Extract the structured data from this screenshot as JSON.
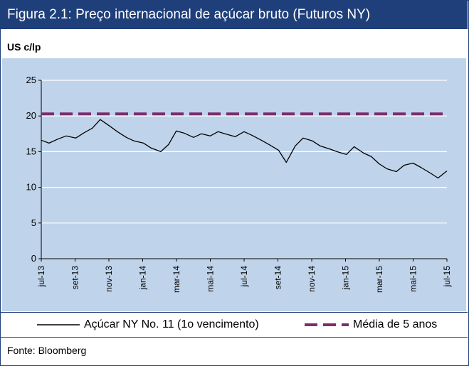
{
  "figure": {
    "title": "Figura 2.1:  Preço internacional de açúcar bruto (Futuros NY)",
    "unit": "US c/lp",
    "source": "Fonte: Bloomberg"
  },
  "colors": {
    "title_bg": "#1f3f7a",
    "plot_bg": "#bfd3ea",
    "series_line": "#000000",
    "average_line": "#7b2d6e"
  },
  "chart_data": {
    "type": "line",
    "ylim": [
      0,
      25
    ],
    "yticks": [
      0,
      5,
      10,
      15,
      20,
      25
    ],
    "grid": true,
    "legend_position": "bottom",
    "x_ticks": [
      "jul-13",
      "set-13",
      "nov-13",
      "jan-14",
      "mar-14",
      "mai-14",
      "jul-14",
      "set-14",
      "nov-14",
      "jan-15",
      "mar-15",
      "mai-15",
      "jul-15"
    ],
    "series": [
      {
        "name": "Açúcar NY No. 11 (1o vencimento)",
        "style": "solid",
        "x": [
          "2013-07",
          "2013-07-15",
          "2013-08",
          "2013-08-15",
          "2013-09",
          "2013-09-15",
          "2013-10",
          "2013-10-15",
          "2013-11",
          "2013-11-15",
          "2013-12",
          "2013-12-15",
          "2014-01",
          "2014-01-15",
          "2014-02",
          "2014-02-15",
          "2014-03",
          "2014-03-15",
          "2014-04",
          "2014-04-15",
          "2014-05",
          "2014-05-15",
          "2014-06",
          "2014-06-15",
          "2014-07",
          "2014-07-15",
          "2014-08",
          "2014-08-15",
          "2014-09",
          "2014-09-15",
          "2014-10",
          "2014-10-15",
          "2014-11",
          "2014-11-15",
          "2014-12",
          "2014-12-15",
          "2015-01",
          "2015-01-15",
          "2015-02",
          "2015-02-15",
          "2015-03",
          "2015-03-15",
          "2015-04",
          "2015-04-15",
          "2015-05",
          "2015-05-15",
          "2015-06",
          "2015-06-15",
          "2015-07"
        ],
        "values": [
          16.6,
          16.2,
          16.8,
          17.2,
          16.9,
          17.6,
          18.3,
          19.5,
          18.6,
          17.8,
          17.0,
          16.5,
          16.2,
          15.5,
          15.0,
          16.0,
          17.9,
          17.6,
          17.0,
          17.5,
          17.2,
          17.8,
          17.4,
          17.1,
          17.8,
          17.3,
          16.6,
          16.0,
          15.2,
          13.5,
          15.8,
          16.9,
          16.5,
          15.8,
          15.4,
          15.0,
          14.6,
          15.7,
          14.8,
          14.3,
          13.3,
          12.6,
          12.2,
          13.1,
          13.4,
          12.8,
          12.0,
          11.3,
          12.3
        ]
      },
      {
        "name": "Média de 5 anos",
        "style": "dashed",
        "x": [
          "2013-07",
          "2015-07"
        ],
        "values": [
          20.3,
          20.3
        ]
      }
    ]
  }
}
